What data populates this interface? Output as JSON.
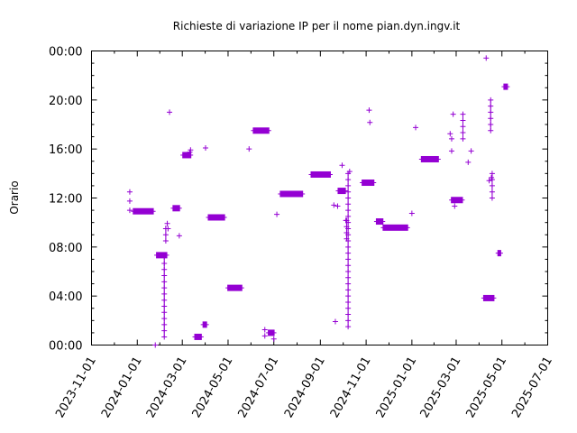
{
  "colors": {
    "series": "#9400d3",
    "axis": "#000000",
    "background": "#ffffff"
  },
  "chart_data": {
    "type": "scatter",
    "title": "Richieste di variazione IP per il nome pian.dyn.ingv.it",
    "ylabel": "Orario",
    "xlabel": "",
    "grid": false,
    "legend": "none",
    "x_axis_type": "date",
    "xlim": [
      "2023-11-01",
      "2025-07-01"
    ],
    "ylim": [
      "00:00",
      "24:00"
    ],
    "x_ticks": [
      "2023-11-01",
      "2024-01-01",
      "2024-03-01",
      "2024-05-01",
      "2024-07-01",
      "2024-09-01",
      "2024-11-01",
      "2025-01-01",
      "2025-03-01",
      "2025-05-01",
      "2025-07-01"
    ],
    "y_ticks": [
      "00:00",
      "04:00",
      "08:00",
      "12:00",
      "16:00",
      "20:00",
      "00:00"
    ],
    "dense_runs": [
      {
        "start": "2023-12-26",
        "end": "2024-01-23",
        "time": "10:55"
      },
      {
        "start": "2024-01-26",
        "end": "2024-02-10",
        "time": "07:20"
      },
      {
        "start": "2024-02-17",
        "end": "2024-02-27",
        "time": "11:10"
      },
      {
        "start": "2024-03-01",
        "end": "2024-03-13",
        "time": "15:30"
      },
      {
        "start": "2024-03-17",
        "end": "2024-03-27",
        "time": "00:40"
      },
      {
        "start": "2024-03-28",
        "end": "2024-04-03",
        "time": "01:40"
      },
      {
        "start": "2024-04-04",
        "end": "2024-04-27",
        "time": "10:25"
      },
      {
        "start": "2024-04-30",
        "end": "2024-05-20",
        "time": "04:40"
      },
      {
        "start": "2024-06-03",
        "end": "2024-06-25",
        "time": "17:30"
      },
      {
        "start": "2024-06-23",
        "end": "2024-07-02",
        "time": "01:00"
      },
      {
        "start": "2024-07-09",
        "end": "2024-08-09",
        "time": "12:20"
      },
      {
        "start": "2024-08-19",
        "end": "2024-09-15",
        "time": "13:55"
      },
      {
        "start": "2024-09-24",
        "end": "2024-10-05",
        "time": "12:35"
      },
      {
        "start": "2024-10-26",
        "end": "2024-11-12",
        "time": "13:15"
      },
      {
        "start": "2024-11-14",
        "end": "2024-11-24",
        "time": "10:05"
      },
      {
        "start": "2024-11-23",
        "end": "2024-12-27",
        "time": "09:35"
      },
      {
        "start": "2025-01-13",
        "end": "2025-02-06",
        "time": "15:10"
      },
      {
        "start": "2025-02-22",
        "end": "2025-03-10",
        "time": "11:50"
      },
      {
        "start": "2025-04-06",
        "end": "2025-04-21",
        "time": "03:50"
      },
      {
        "start": "2025-04-25",
        "end": "2025-04-30",
        "time": "07:30"
      },
      {
        "start": "2025-05-03",
        "end": "2025-05-09",
        "time": "21:05"
      }
    ],
    "points": [
      {
        "x": "2023-12-22",
        "y": "12:30"
      },
      {
        "x": "2023-12-22",
        "y": "11:45"
      },
      {
        "x": "2023-12-22",
        "y": "11:00"
      },
      {
        "x": "2024-01-25",
        "y": "00:00"
      },
      {
        "x": "2024-02-10",
        "y": "09:55"
      },
      {
        "x": "2024-02-11",
        "y": "09:30"
      },
      {
        "x": "2024-02-13",
        "y": "19:00"
      },
      {
        "x": "2024-02-26",
        "y": "08:55"
      },
      {
        "x": "2024-03-11",
        "y": "15:45"
      },
      {
        "x": "2024-03-12",
        "y": "15:55"
      },
      {
        "x": "2024-04-01",
        "y": "16:05"
      },
      {
        "x": "2024-05-29",
        "y": "16:00"
      },
      {
        "x": "2024-06-19",
        "y": "01:15"
      },
      {
        "x": "2024-06-19",
        "y": "00:45"
      },
      {
        "x": "2024-07-01",
        "y": "00:30"
      },
      {
        "x": "2024-07-05",
        "y": "10:40"
      },
      {
        "x": "2024-09-19",
        "y": "11:25"
      },
      {
        "x": "2024-09-21",
        "y": "01:55"
      },
      {
        "x": "2024-09-24",
        "y": "11:20"
      },
      {
        "x": "2024-09-30",
        "y": "14:40"
      },
      {
        "x": "2024-10-05",
        "y": "10:10"
      },
      {
        "x": "2024-10-10",
        "y": "14:10"
      },
      {
        "x": "2024-11-05",
        "y": "19:10"
      },
      {
        "x": "2024-11-06",
        "y": "18:10"
      },
      {
        "x": "2025-01-01",
        "y": "10:45"
      },
      {
        "x": "2025-01-06",
        "y": "17:45"
      },
      {
        "x": "2025-02-21",
        "y": "17:15"
      },
      {
        "x": "2025-02-23",
        "y": "16:50"
      },
      {
        "x": "2025-02-23",
        "y": "15:50"
      },
      {
        "x": "2025-02-25",
        "y": "18:50"
      },
      {
        "x": "2025-02-27",
        "y": "11:20"
      },
      {
        "x": "2025-03-17",
        "y": "14:55"
      },
      {
        "x": "2025-03-21",
        "y": "15:50"
      },
      {
        "x": "2025-04-10",
        "y": "23:25"
      },
      {
        "x": "2025-04-14",
        "y": "13:25"
      },
      {
        "x": "2025-04-17",
        "y": "13:40"
      }
    ],
    "vertical_runs": [
      {
        "x": "2024-02-06",
        "from": "00:40",
        "to": "07:20"
      },
      {
        "x": "2024-02-08",
        "from": "08:30",
        "to": "09:45"
      },
      {
        "x": "2024-10-06",
        "from": "08:40",
        "to": "10:10"
      },
      {
        "x": "2024-10-08",
        "from": "01:30",
        "to": "14:10"
      },
      {
        "x": "2025-03-10",
        "from": "16:50",
        "to": "18:50"
      },
      {
        "x": "2025-04-16",
        "from": "17:30",
        "to": "20:00"
      },
      {
        "x": "2025-04-18",
        "from": "12:00",
        "to": "14:00"
      }
    ]
  }
}
